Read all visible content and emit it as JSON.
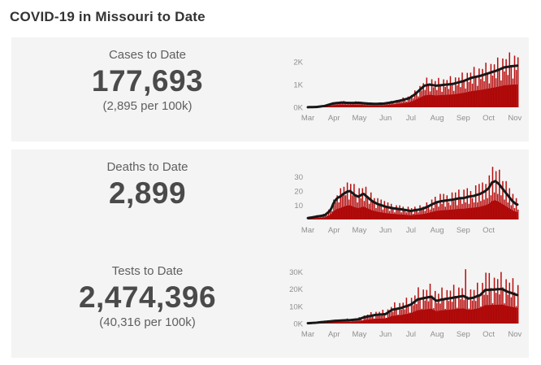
{
  "page": {
    "title": "COVID-19 in Missouri to Date"
  },
  "colors": {
    "card_bg": "#f4f4f4",
    "bar_red": "#b70d0d",
    "area_red": "#9c0404",
    "line_black": "#171717",
    "axis_text": "#8f8f8f",
    "title_text": "#333333",
    "value_text": "#4a4a4a",
    "label_text": "#5f5f5f"
  },
  "cards": [
    {
      "label": "Cases to Date",
      "value": "177,693",
      "sub": "(2,895 per 100k)"
    },
    {
      "label": "Deaths to Date",
      "value": "2,899",
      "sub": ""
    },
    {
      "label": "Tests to Date",
      "value": "2,474,396",
      "sub": "(40,316 per 100k)"
    }
  ],
  "chart_data": [
    {
      "type": "bar",
      "title": "Daily cases with 7-day average",
      "xlabel": "",
      "ylabel": "",
      "x_unit": "days since Mar 1",
      "sample_step_days": 2,
      "months": [
        "Mar",
        "Apr",
        "May",
        "Jun",
        "Jul",
        "Aug",
        "Sep",
        "Oct",
        "Nov"
      ],
      "month_start_days": [
        0,
        31,
        61,
        92,
        122,
        153,
        184,
        214,
        245
      ],
      "days_total": 250,
      "ylim": [
        0,
        2500
      ],
      "y_ticks": [
        {
          "v": 0,
          "label": "0K"
        },
        {
          "v": 1000,
          "label": "1K"
        },
        {
          "v": 2000,
          "label": "2K"
        }
      ],
      "grid": false,
      "legend": "none",
      "envelope_factor": 0.55,
      "series": [
        {
          "name": "daily-bars",
          "values": [
            6,
            6,
            12,
            11,
            9,
            19,
            22,
            40,
            34,
            69,
            60,
            57,
            130,
            113,
            178,
            170,
            125,
            233,
            175,
            242,
            168,
            278,
            202,
            139,
            243,
            171,
            230,
            155,
            265,
            198,
            140,
            241,
            167,
            215,
            138,
            223,
            162,
            111,
            195,
            138,
            180,
            122,
            211,
            159,
            113,
            206,
            158,
            224,
            158,
            282,
            220,
            165,
            315,
            241,
            341,
            240,
            432,
            340,
            252,
            475,
            360,
            540,
            400,
            743,
            617,
            478,
            938,
            735,
            1060,
            760,
            1305,
            983,
            700,
            1234,
            878,
            1154,
            760,
            1293,
            966,
            682,
            1228,
            891,
            1198,
            805,
            1369,
            1022,
            721,
            1313,
            963,
            1308,
            888,
            1526,
            1150,
            826,
            1513,
            1116,
            1524,
            1040,
            1776,
            1332,
            944,
            1705,
            1242,
            1685,
            1142,
            1960,
            1476,
            1050,
            1905,
            1393,
            1887,
            1277,
            2187,
            1652,
            1179,
            2145,
            1575,
            2115,
            1419,
            2411,
            1800,
            1265,
            2269,
            1640,
            2196
          ]
        },
        {
          "name": "7-day-average-line",
          "values": [
            5,
            7,
            9,
            11,
            13,
            15,
            24,
            33,
            42,
            51,
            60,
            82,
            104,
            126,
            148,
            170,
            178,
            186,
            194,
            202,
            210,
            206,
            202,
            198,
            194,
            190,
            192,
            194,
            196,
            198,
            200,
            193,
            186,
            179,
            172,
            165,
            162,
            159,
            156,
            153,
            150,
            153,
            156,
            159,
            162,
            165,
            176,
            187,
            198,
            209,
            220,
            236,
            252,
            268,
            284,
            300,
            320,
            340,
            360,
            380,
            400,
            450,
            500,
            550,
            617,
            683,
            750,
            817,
            883,
            950,
            967,
            983,
            1000,
            987,
            975,
            962,
            950,
            958,
            966,
            974,
            982,
            990,
            998,
            1006,
            1014,
            1022,
            1030,
            1050,
            1070,
            1090,
            1110,
            1130,
            1150,
            1180,
            1210,
            1240,
            1270,
            1300,
            1316,
            1332,
            1348,
            1364,
            1380,
            1404,
            1428,
            1452,
            1476,
            1500,
            1524,
            1548,
            1572,
            1596,
            1620,
            1652,
            1684,
            1716,
            1750,
            1762,
            1774,
            1786,
            1800,
            1807,
            1815,
            1822,
            1830
          ]
        }
      ]
    },
    {
      "type": "bar",
      "title": "Daily deaths with 7-day average",
      "xlabel": "",
      "ylabel": "",
      "x_unit": "days since Mar 1",
      "sample_step_days": 2,
      "months": [
        "Mar",
        "Apr",
        "May",
        "Jun",
        "Jul",
        "Aug",
        "Sep",
        "Oct"
      ],
      "month_start_days": [
        0,
        31,
        61,
        92,
        122,
        153,
        184,
        214
      ],
      "days_total": 250,
      "ylim": [
        0,
        40
      ],
      "y_ticks": [
        {
          "v": 10,
          "label": "10"
        },
        {
          "v": 20,
          "label": "20"
        },
        {
          "v": 30,
          "label": "30"
        }
      ],
      "grid": false,
      "legend": "none",
      "envelope_factor": 0.5,
      "series": [
        {
          "name": "daily-bars",
          "values": [
            1,
            1,
            2,
            2,
            1,
            3,
            2,
            3,
            2,
            4,
            3,
            3,
            7,
            6,
            6,
            14,
            12,
            17,
            12,
            22,
            17,
            23,
            17,
            26,
            14,
            25,
            17,
            25,
            17,
            12,
            22,
            15,
            22,
            13,
            23,
            16,
            11,
            19,
            13,
            15,
            8,
            15,
            10,
            14,
            7,
            13,
            8,
            12,
            6,
            11,
            8,
            5,
            10,
            8,
            10,
            5,
            9,
            7,
            5,
            9,
            6,
            8,
            4,
            9,
            7,
            5,
            10,
            7,
            9,
            6,
            12,
            9,
            7,
            14,
            8,
            16,
            12,
            9,
            18,
            11,
            18,
            9,
            17,
            12,
            10,
            19,
            13,
            19,
            10,
            21,
            15,
            11,
            21,
            12,
            22,
            11,
            20,
            15,
            12,
            24,
            12,
            25,
            13,
            26,
            14,
            25,
            15,
            31,
            17,
            37,
            19,
            34,
            18,
            35,
            17,
            27,
            14,
            27,
            12,
            22,
            10,
            18,
            8,
            15,
            7
          ]
        },
        {
          "name": "7-day-average-line",
          "values": [
            1,
            1.2,
            1.4,
            1.6,
            1.8,
            2,
            2.2,
            2.4,
            2.6,
            2.8,
            3,
            4,
            5,
            6,
            8,
            11,
            13,
            14.5,
            15.5,
            16,
            17,
            18,
            18.6,
            19.4,
            19.8,
            20,
            19,
            18,
            17,
            16.5,
            16,
            16.8,
            17.6,
            18,
            17,
            16,
            15,
            14,
            13,
            12.3,
            11.7,
            11,
            10.6,
            10.2,
            9.8,
            9.4,
            9,
            8.7,
            8.5,
            8.2,
            8,
            7.8,
            7.7,
            7.5,
            7.3,
            7.2,
            7,
            6.8,
            6.6,
            6.4,
            6.2,
            6,
            6.2,
            6.5,
            6.7,
            6.8,
            7,
            7.3,
            7.7,
            8,
            8.6,
            9.1,
            9.7,
            10.3,
            10.9,
            11.4,
            12,
            12.3,
            12.6,
            12.9,
            13,
            13.2,
            13.4,
            13.5,
            13.7,
            13.8,
            14,
            14.25,
            14.5,
            14.75,
            15,
            15,
            15,
            15.3,
            15.7,
            16,
            16.2,
            16.4,
            16.5,
            16.9,
            17.3,
            17.6,
            18,
            18.7,
            19.3,
            20,
            21,
            22,
            24,
            26,
            26.5,
            27,
            26,
            25,
            23.5,
            22,
            20.5,
            19,
            17.5,
            16,
            14.5,
            13,
            12,
            11,
            10.5
          ]
        }
      ]
    },
    {
      "type": "bar",
      "title": "Daily tests (thousands) with 7-day average",
      "xlabel": "",
      "ylabel": "",
      "x_unit": "days since Mar 1",
      "sample_step_days": 2,
      "value_unit": "K",
      "months": [
        "Mar",
        "Apr",
        "May",
        "Jun",
        "Jul",
        "Aug",
        "Sep",
        "Oct",
        "Nov"
      ],
      "month_start_days": [
        0,
        31,
        61,
        92,
        122,
        153,
        184,
        214,
        245
      ],
      "days_total": 250,
      "ylim": [
        0,
        33
      ],
      "y_ticks": [
        {
          "v": 0,
          "label": "0K"
        },
        {
          "v": 10,
          "label": "10K"
        },
        {
          "v": 20,
          "label": "20K"
        },
        {
          "v": 30,
          "label": "30K"
        }
      ],
      "grid": false,
      "legend": "none",
      "envelope_factor": 0.55,
      "series": [
        {
          "name": "daily-bars",
          "values": [
            0.3,
            0.2,
            0.5,
            0.4,
            0.3,
            0.7,
            0.5,
            0.9,
            0.7,
            1.4,
            1.1,
            0.7,
            1.6,
            1.1,
            1.8,
            1.2,
            2.3,
            1.7,
            1.0,
            2.3,
            1.6,
            2.4,
            1.6,
            2.9,
            2.1,
            1.2,
            2.8,
            2.0,
            3.0,
            2.0,
            3.7,
            2.9,
            1.9,
            4.7,
            3.4,
            5.2,
            3.6,
            6.6,
            4.8,
            2.9,
            6.8,
            4.6,
            6.8,
            4.5,
            8.0,
            5.7,
            3.3,
            8.2,
            6.1,
            9.6,
            6.8,
            12.3,
            8.8,
            5.2,
            11.9,
            8.1,
            12.1,
            8.2,
            15.0,
            10.8,
            6.4,
            14.9,
            10.6,
            16.3,
            11.3,
            21.0,
            14.9,
            8.6,
            19.7,
            13.3,
            19.5,
            12.9,
            23.1,
            16.3,
            8.9,
            18.9,
            11.9,
            17.3,
            11.6,
            20.9,
            14.7,
            8.5,
            19.4,
            13.1,
            19.1,
            12.6,
            22.5,
            16.0,
            9.2,
            20.9,
            14.1,
            20.5,
            13.6,
            31.5,
            15.8,
            8.7,
            19.8,
            13.3,
            19.5,
            13.1,
            23.7,
            16.9,
            9.9,
            23.6,
            16.7,
            29.5,
            16.6,
            29.3,
            20.6,
            11.8,
            26.6,
            17.8,
            25.8,
            16.9,
            29.9,
            21.0,
            11.7,
            25.7,
            16.7,
            23.7,
            15.2,
            26.3,
            18.1,
            10.1,
            22.3
          ]
        },
        {
          "name": "7-day-average-line",
          "values": [
            0.2,
            0.26,
            0.32,
            0.38,
            0.44,
            0.5,
            0.6,
            0.7,
            0.8,
            0.9,
            1,
            1.09,
            1.18,
            1.27,
            1.36,
            1.45,
            1.52,
            1.58,
            1.65,
            1.71,
            1.78,
            1.84,
            1.88,
            1.92,
            1.96,
            2,
            2.09,
            2.18,
            2.27,
            2.36,
            2.45,
            2.8,
            3.2,
            3.5,
            3.8,
            4,
            4.2,
            4.4,
            4.6,
            4.8,
            5,
            5.1,
            5.2,
            5.25,
            5.3,
            5.4,
            5.5,
            6.1,
            6.75,
            7.4,
            8,
            8.2,
            8.4,
            8.6,
            8.8,
            9,
            9.3,
            9.7,
            10,
            10.3,
            10.7,
            11,
            11.75,
            12.5,
            13.25,
            14,
            14.2,
            14.4,
            14.6,
            14.8,
            15,
            15.2,
            15.4,
            15.5,
            14.8,
            14,
            13.2,
            13.3,
            13.6,
            13.9,
            14,
            14.2,
            14.4,
            14.5,
            14.7,
            14.8,
            15,
            15.2,
            15.3,
            15.5,
            15.7,
            15.8,
            16,
            15.5,
            15,
            14.5,
            14.7,
            14.8,
            15,
            15.4,
            15.8,
            16.1,
            16.5,
            17.5,
            18.5,
            19.5,
            19.5,
            19.5,
            19.6,
            19.7,
            19.7,
            19.8,
            19.85,
            19.9,
            19.95,
            20,
            19.5,
            19,
            18.5,
            18.2,
            17.9,
            17.5,
            17.2,
            16.8,
            16.5
          ]
        }
      ]
    }
  ]
}
